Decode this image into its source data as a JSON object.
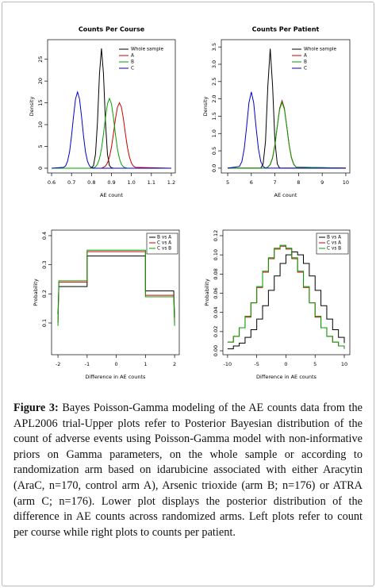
{
  "chart_data": [
    {
      "type": "line",
      "title": "Counts Per Course",
      "x_label": "AE count",
      "y_label": "Density",
      "x": [
        0.6,
        0.66,
        0.67,
        0.68,
        0.69,
        0.7,
        0.71,
        0.72,
        0.73,
        0.74,
        0.75,
        0.76,
        0.77,
        0.78,
        0.79,
        0.8,
        0.81,
        0.82,
        0.83,
        0.84,
        0.85,
        0.86,
        0.87,
        0.88,
        0.89,
        0.9,
        0.91,
        0.92,
        0.93,
        0.94,
        0.95,
        0.96,
        0.97,
        0.98,
        0.99,
        1.0,
        1.01,
        1.02,
        1.2
      ],
      "series": [
        {
          "name": "Whole sample",
          "color": "#000000",
          "values": [
            0,
            0,
            0,
            0,
            0,
            0,
            0,
            0,
            0,
            0,
            0,
            0,
            0,
            0,
            0,
            0.1,
            0.6,
            3.2,
            10.6,
            21.7,
            27.5,
            21.7,
            10.6,
            3.2,
            0.6,
            0.1,
            0,
            0,
            0,
            0,
            0,
            0,
            0,
            0,
            0,
            0,
            0,
            0,
            0
          ]
        },
        {
          "name": "A",
          "color": "#cc0000",
          "values": [
            0,
            0,
            0,
            0,
            0,
            0,
            0,
            0,
            0,
            0,
            0,
            0,
            0,
            0,
            0,
            0,
            0,
            0,
            0,
            0,
            0,
            0.2,
            0.5,
            1.2,
            2.6,
            4.8,
            7.9,
            11.3,
            14.0,
            15,
            14.0,
            11.3,
            7.9,
            4.8,
            2.6,
            1.2,
            0.5,
            0.2,
            0
          ]
        },
        {
          "name": "B",
          "color": "#00a000",
          "values": [
            0,
            0,
            0,
            0,
            0,
            0,
            0,
            0,
            0,
            0,
            0,
            0,
            0,
            0,
            0,
            0,
            0.1,
            0.3,
            0.9,
            2.2,
            4.4,
            7.8,
            11.6,
            14.8,
            16,
            14.8,
            11.6,
            7.8,
            4.4,
            2.2,
            0.9,
            0.3,
            0.1,
            0,
            0,
            0,
            0,
            0,
            0
          ]
        },
        {
          "name": "C",
          "color": "#0000cc",
          "values": [
            0,
            0.2,
            0.5,
            1.6,
            3.7,
            7.4,
            11.9,
            15.9,
            17.5,
            15.9,
            11.9,
            7.4,
            3.7,
            1.6,
            0.5,
            0.2,
            0,
            0,
            0,
            0,
            0,
            0,
            0,
            0,
            0,
            0,
            0,
            0,
            0,
            0,
            0,
            0,
            0,
            0,
            0,
            0,
            0,
            0,
            0
          ]
        }
      ],
      "xlim": [
        0.58,
        1.22
      ],
      "xticks": [
        0.6,
        0.7,
        0.8,
        0.9,
        {
          "value": 1,
          "label": "1.0"
        },
        1.1,
        1.2
      ],
      "ylim": [
        -1.1,
        29.5
      ],
      "yticks": [
        0,
        5,
        10,
        15,
        20,
        25
      ],
      "legend": "upper right",
      "legend_frame": false
    },
    {
      "type": "line",
      "title": "Counts Per Patient",
      "x_label": "AE count",
      "y_label": "Density",
      "x": [
        5,
        5.5,
        5.6,
        5.7,
        5.8,
        5.9,
        6.0,
        6.1,
        6.2,
        6.3,
        6.4,
        6.5,
        6.6,
        6.7,
        6.8,
        6.9,
        7.0,
        7.1,
        7.2,
        7.3,
        7.4,
        7.5,
        7.6,
        7.7,
        7.8,
        7.9,
        10
      ],
      "series": [
        {
          "name": "Whole sample",
          "color": "#000000",
          "values": [
            0,
            0,
            0,
            0,
            0,
            0,
            0,
            0,
            0,
            0,
            0,
            0.12,
            0.77,
            2.38,
            3.45,
            2.38,
            0.77,
            0.12,
            0,
            0,
            0,
            0,
            0,
            0,
            0,
            0,
            0
          ]
        },
        {
          "name": "A",
          "color": "#cc0000",
          "values": [
            0,
            0,
            0,
            0,
            0,
            0,
            0,
            0,
            0,
            0,
            0,
            0,
            0,
            0.03,
            0.1,
            0.29,
            0.67,
            1.21,
            1.73,
            1.95,
            1.73,
            1.21,
            0.67,
            0.29,
            0.1,
            0.03,
            0
          ]
        },
        {
          "name": "B",
          "color": "#00a000",
          "values": [
            0,
            0,
            0,
            0,
            0,
            0,
            0,
            0,
            0,
            0,
            0,
            0,
            0,
            0.03,
            0.11,
            0.31,
            0.68,
            1.21,
            1.7,
            1.9,
            1.7,
            1.21,
            0.68,
            0.31,
            0.11,
            0.03,
            0
          ]
        },
        {
          "name": "C",
          "color": "#0000cc",
          "values": [
            0,
            0.05,
            0.19,
            0.56,
            1.19,
            1.89,
            2.2,
            1.89,
            1.19,
            0.56,
            0.19,
            0.05,
            0,
            0,
            0,
            0,
            0,
            0,
            0,
            0,
            0,
            0,
            0,
            0,
            0,
            0,
            0
          ]
        }
      ],
      "xlim": [
        4.73,
        10.17
      ],
      "xticks": [
        5,
        6,
        7,
        8,
        9,
        10
      ],
      "ylim": [
        -0.14,
        3.71
      ],
      "yticks": [
        {
          "value": 0,
          "label": "0.0"
        },
        0.5,
        {
          "value": 1,
          "label": "1.0"
        },
        1.5,
        {
          "value": 2,
          "label": "2.0"
        },
        2.5,
        {
          "value": 3,
          "label": "3.0"
        },
        3.5
      ],
      "legend": "upper right",
      "legend_frame": false
    },
    {
      "type": "line",
      "x_label": "Difference in AE counts",
      "y_label": "Probability",
      "x": [
        -2,
        -1.97,
        -1,
        -1,
        1,
        1,
        1.97,
        2
      ],
      "series": [
        {
          "name": "B vs A",
          "color": "#000000",
          "values": [
            0.13,
            0.225,
            0.225,
            0.33,
            0.33,
            0.21,
            0.21,
            0.12
          ]
        },
        {
          "name": "C vs A",
          "color": "#cc0000",
          "values": [
            0.1,
            0.24,
            0.24,
            0.345,
            0.345,
            0.195,
            0.195,
            0.1
          ]
        },
        {
          "name": "C vs B",
          "color": "#00a000",
          "values": [
            0.09,
            0.245,
            0.245,
            0.35,
            0.35,
            0.19,
            0.19,
            0.09
          ]
        }
      ],
      "xlim": [
        -2.22,
        2.16
      ],
      "xticks": [
        -2,
        -1,
        0,
        1,
        2
      ],
      "ylim": [
        -0.009,
        0.419
      ],
      "yticks": [
        0.1,
        0.2,
        0.3,
        0.4
      ],
      "legend": "upper right",
      "legend_frame": true
    },
    {
      "type": "line",
      "step": true,
      "x_label": "Difference in AE counts",
      "y_label": "Probability",
      "x": [
        -10,
        -9,
        -8,
        -7,
        -6,
        -5,
        -4,
        -3,
        -2,
        -1,
        0,
        1,
        2,
        3,
        4,
        5,
        6,
        7,
        8,
        9,
        10
      ],
      "series": [
        {
          "name": "B vs A",
          "color": "#000000",
          "values": [
            0.002,
            0.005,
            0.008,
            0.014,
            0.022,
            0.033,
            0.047,
            0.063,
            0.078,
            0.091,
            0.1,
            0.103,
            0.1,
            0.091,
            0.078,
            0.063,
            0.047,
            0.033,
            0.022,
            0.014,
            0.008
          ]
        },
        {
          "name": "C vs A",
          "color": "#cc0000",
          "values": [
            0.009,
            0.015,
            0.024,
            0.035,
            0.05,
            0.066,
            0.082,
            0.096,
            0.106,
            0.109,
            0.106,
            0.096,
            0.082,
            0.066,
            0.05,
            0.035,
            0.024,
            0.015,
            0.009,
            0.005,
            0.002
          ]
        },
        {
          "name": "C vs B",
          "color": "#00a000",
          "values": [
            0.009,
            0.015,
            0.024,
            0.036,
            0.05,
            0.067,
            0.083,
            0.097,
            0.107,
            0.11,
            0.107,
            0.097,
            0.083,
            0.067,
            0.05,
            0.036,
            0.024,
            0.015,
            0.009,
            0.005,
            0.003
          ]
        }
      ],
      "xlim": [
        -10.8,
        10.95
      ],
      "xticks": [
        -10,
        -5,
        0,
        5,
        10
      ],
      "ylim": [
        -0.0041,
        0.1258
      ],
      "yticks": [
        {
          "value": 0,
          "label": "0.00"
        },
        {
          "value": 0.02,
          "label": "0.02"
        },
        {
          "value": 0.04,
          "label": "0.04"
        },
        {
          "value": 0.06,
          "label": "0.06"
        },
        {
          "value": 0.08,
          "label": "0.08"
        },
        {
          "value": 0.1,
          "label": "0.10"
        },
        {
          "value": 0.12,
          "label": "0.12"
        }
      ],
      "legend": "upper right",
      "legend_frame": true
    }
  ],
  "caption": {
    "label": "Figure 3:",
    "text": "Bayes Poisson-Gamma modeling of the AE counts data from the APL2006 trial-Upper plots refer to Posterior Bayesian distribution of the count of adverse events using Poisson-Gamma model with non-informative priors on Gamma parameters, on the whole sample or according to randomization arm based on idarubicine associated with either Aracytin (AraC, n=170, control arm A), Arsenic trioxide (arm B; n=176) or ATRA (arm C; n=176). Lower plot displays the posterior distribution of the difference in AE counts across randomized arms. Left plots refer to count per course while right plots to counts per patient."
  }
}
